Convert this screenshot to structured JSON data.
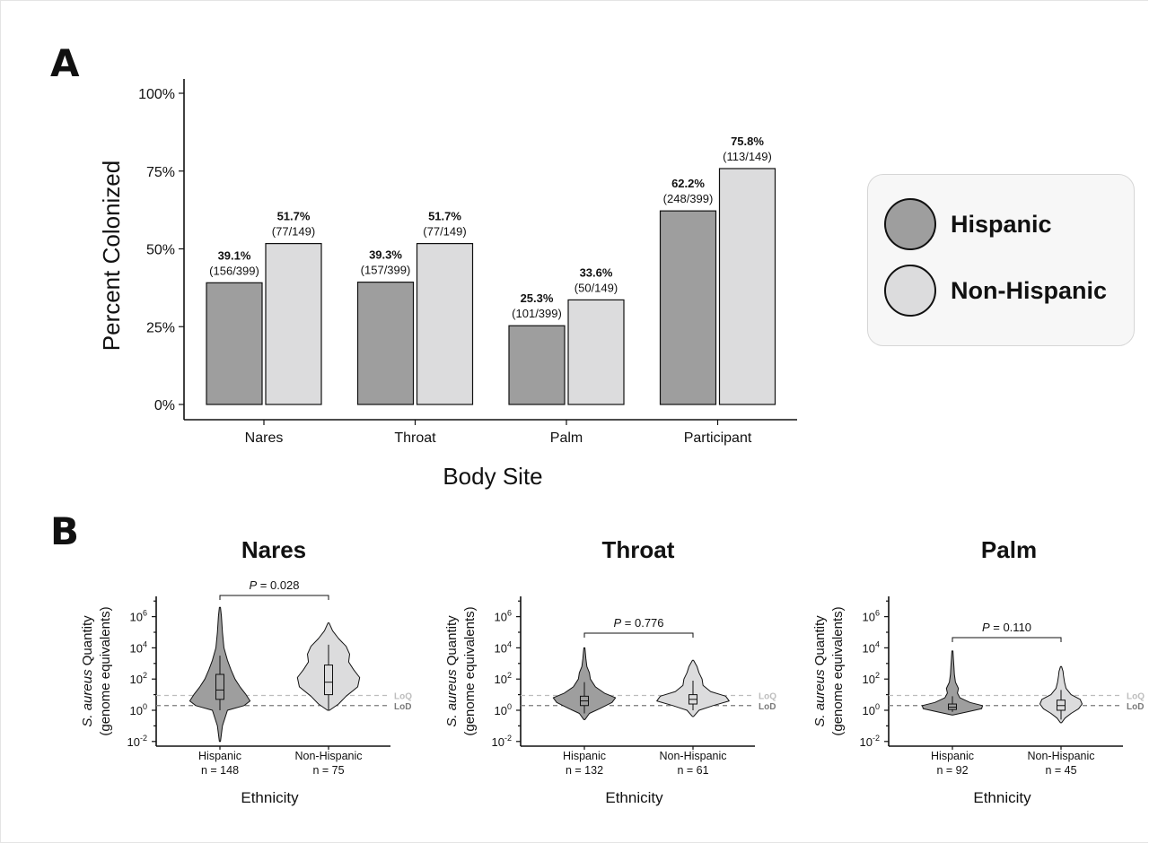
{
  "panel_a_letter": "A",
  "panel_b_letter": "B",
  "colors": {
    "hispanic": "#9e9e9e",
    "non_hispanic": "#dcdcdd",
    "axis": "#111111",
    "loq": "#bdbdbd",
    "lod": "#7a7a7a"
  },
  "legend": {
    "hispanic": "Hispanic",
    "non_hispanic": "Non-Hispanic"
  },
  "chart_data": [
    {
      "type": "bar",
      "xlabel": "Body Site",
      "ylabel": "Percent Colonized",
      "ylim": [
        0,
        100
      ],
      "yticks": [
        0,
        25,
        50,
        75,
        100
      ],
      "ytick_labels": [
        "0%",
        "25%",
        "50%",
        "75%",
        "100%"
      ],
      "categories": [
        "Nares",
        "Throat",
        "Palm",
        "Participant"
      ],
      "series": [
        {
          "name": "Hispanic",
          "values": [
            39.1,
            39.3,
            25.3,
            62.2
          ],
          "value_labels": [
            "39.1%",
            "39.3%",
            "25.3%",
            "62.2%"
          ],
          "count_labels": [
            "(156/399)",
            "(157/399)",
            "(101/399)",
            "(248/399)"
          ]
        },
        {
          "name": "Non-Hispanic",
          "values": [
            51.7,
            51.7,
            33.6,
            75.8
          ],
          "value_labels": [
            "51.7%",
            "51.7%",
            "33.6%",
            "75.8%"
          ],
          "count_labels": [
            "(77/149)",
            "(77/149)",
            "(50/149)",
            "(113/149)"
          ]
        }
      ],
      "legend_position": "right",
      "grid": false
    },
    {
      "type": "violin",
      "title": "Nares",
      "xlabel": "Ethnicity",
      "ylabel_italic": "S. aureus",
      "ylabel_rest": " Quantity",
      "ylabel_line2": "(genome equivalents)",
      "y_scale": "log10",
      "ylim_log10": [
        -2.3,
        7.3
      ],
      "yticks_log10": [
        -2,
        0,
        2,
        4,
        6
      ],
      "ytick_base": "10",
      "ytick_exponents": [
        "-2",
        "0",
        "2",
        "4",
        "6"
      ],
      "categories": [
        "Hispanic",
        "Non-Hispanic"
      ],
      "n_labels": [
        "n = 148",
        "n = 75"
      ],
      "p_value_prefix": "P",
      "p_value_text": " = 0.028",
      "loq_label": "LoQ",
      "lod_label": "LoD",
      "loq_log10": 0.95,
      "lod_log10": 0.3,
      "groups": [
        {
          "name": "Hispanic",
          "whisker_low": 0.0,
          "q1": 0.7,
          "median": 1.3,
          "q3": 2.3,
          "whisker_high": 3.5,
          "violin_min": -2.0,
          "violin_max": 6.6,
          "profile": [
            [
              -2.0,
              0.01
            ],
            [
              -1.0,
              0.05
            ],
            [
              0,
              0.15
            ],
            [
              0.3,
              0.48
            ],
            [
              0.6,
              0.6
            ],
            [
              1.0,
              0.52
            ],
            [
              1.5,
              0.4
            ],
            [
              2.0,
              0.3
            ],
            [
              2.6,
              0.22
            ],
            [
              3.2,
              0.15
            ],
            [
              4.0,
              0.08
            ],
            [
              5.0,
              0.05
            ],
            [
              6.0,
              0.03
            ],
            [
              6.6,
              0.01
            ]
          ]
        },
        {
          "name": "Non-Hispanic",
          "whisker_low": 0.0,
          "q1": 1.0,
          "median": 1.8,
          "q3": 2.9,
          "whisker_high": 4.2,
          "violin_min": 0.0,
          "violin_max": 5.6,
          "profile": [
            [
              0.0,
              0.02
            ],
            [
              0.4,
              0.2
            ],
            [
              0.9,
              0.35
            ],
            [
              1.5,
              0.58
            ],
            [
              2.1,
              0.62
            ],
            [
              2.6,
              0.5
            ],
            [
              3.1,
              0.4
            ],
            [
              3.6,
              0.42
            ],
            [
              4.1,
              0.35
            ],
            [
              4.6,
              0.2
            ],
            [
              5.1,
              0.08
            ],
            [
              5.6,
              0.01
            ]
          ]
        }
      ]
    },
    {
      "type": "violin",
      "title": "Throat",
      "xlabel": "Ethnicity",
      "ylabel_italic": "S. aureus",
      "ylabel_rest": " Quantity",
      "ylabel_line2": "(genome equivalents)",
      "y_scale": "log10",
      "ylim_log10": [
        -2.3,
        7.3
      ],
      "yticks_log10": [
        -2,
        0,
        2,
        4,
        6
      ],
      "ytick_base": "10",
      "ytick_exponents": [
        "-2",
        "0",
        "2",
        "4",
        "6"
      ],
      "categories": [
        "Hispanic",
        "Non-Hispanic"
      ],
      "n_labels": [
        "n = 132",
        "n = 61"
      ],
      "p_value_prefix": "P",
      "p_value_text": " = 0.776",
      "loq_label": "LoQ",
      "lod_label": "LoD",
      "loq_log10": 0.95,
      "lod_log10": 0.3,
      "groups": [
        {
          "name": "Hispanic",
          "whisker_low": -0.2,
          "q1": 0.3,
          "median": 0.6,
          "q3": 0.9,
          "whisker_high": 1.8,
          "violin_min": -0.6,
          "violin_max": 4.0,
          "profile": [
            [
              -0.6,
              0.01
            ],
            [
              -0.2,
              0.1
            ],
            [
              0.1,
              0.3
            ],
            [
              0.5,
              0.55
            ],
            [
              0.8,
              0.62
            ],
            [
              1.1,
              0.4
            ],
            [
              1.5,
              0.22
            ],
            [
              2.0,
              0.12
            ],
            [
              2.4,
              0.1
            ],
            [
              2.8,
              0.05
            ],
            [
              3.3,
              0.03
            ],
            [
              4.0,
              0.01
            ]
          ]
        },
        {
          "name": "Non-Hispanic",
          "whisker_low": 0.0,
          "q1": 0.4,
          "median": 0.7,
          "q3": 1.0,
          "whisker_high": 1.9,
          "violin_min": -0.4,
          "violin_max": 3.2,
          "profile": [
            [
              -0.4,
              0.01
            ],
            [
              0.0,
              0.12
            ],
            [
              0.3,
              0.4
            ],
            [
              0.6,
              0.72
            ],
            [
              0.9,
              0.65
            ],
            [
              1.2,
              0.35
            ],
            [
              1.6,
              0.2
            ],
            [
              2.0,
              0.18
            ],
            [
              2.4,
              0.12
            ],
            [
              2.8,
              0.08
            ],
            [
              3.2,
              0.01
            ]
          ]
        }
      ]
    },
    {
      "type": "violin",
      "title": "Palm",
      "xlabel": "Ethnicity",
      "ylabel_italic": "S. aureus",
      "ylabel_rest": " Quantity",
      "ylabel_line2": "(genome equivalents)",
      "y_scale": "log10",
      "ylim_log10": [
        -2.3,
        7.3
      ],
      "yticks_log10": [
        -2,
        0,
        2,
        4,
        6
      ],
      "ytick_base": "10",
      "ytick_exponents": [
        "-2",
        "0",
        "2",
        "4",
        "6"
      ],
      "categories": [
        "Hispanic",
        "Non-Hispanic"
      ],
      "n_labels": [
        "n = 92",
        "n = 45"
      ],
      "p_value_prefix": "P",
      "p_value_text": " = 0.110",
      "loq_label": "LoQ",
      "lod_label": "LoD",
      "loq_log10": 0.95,
      "lod_log10": 0.3,
      "groups": [
        {
          "name": "Hispanic",
          "whisker_low": -0.1,
          "q1": 0.05,
          "median": 0.2,
          "q3": 0.4,
          "whisker_high": 0.9,
          "violin_min": -0.3,
          "violin_max": 3.8,
          "profile": [
            [
              -0.3,
              0.01
            ],
            [
              -0.1,
              0.3
            ],
            [
              0.1,
              0.58
            ],
            [
              0.3,
              0.6
            ],
            [
              0.5,
              0.35
            ],
            [
              0.8,
              0.15
            ],
            [
              1.1,
              0.1
            ],
            [
              1.4,
              0.12
            ],
            [
              1.8,
              0.06
            ],
            [
              2.3,
              0.04
            ],
            [
              2.8,
              0.03
            ],
            [
              3.3,
              0.02
            ],
            [
              3.8,
              0.01
            ]
          ]
        },
        {
          "name": "Non-Hispanic",
          "whisker_low": -0.6,
          "q1": 0.0,
          "median": 0.3,
          "q3": 0.65,
          "whisker_high": 1.3,
          "violin_min": -0.8,
          "violin_max": 2.8,
          "profile": [
            [
              -0.8,
              0.01
            ],
            [
              -0.5,
              0.08
            ],
            [
              -0.2,
              0.2
            ],
            [
              0.1,
              0.35
            ],
            [
              0.4,
              0.42
            ],
            [
              0.7,
              0.38
            ],
            [
              1.0,
              0.2
            ],
            [
              1.4,
              0.1
            ],
            [
              1.8,
              0.07
            ],
            [
              2.2,
              0.05
            ],
            [
              2.5,
              0.04
            ],
            [
              2.8,
              0.01
            ]
          ]
        }
      ]
    }
  ]
}
